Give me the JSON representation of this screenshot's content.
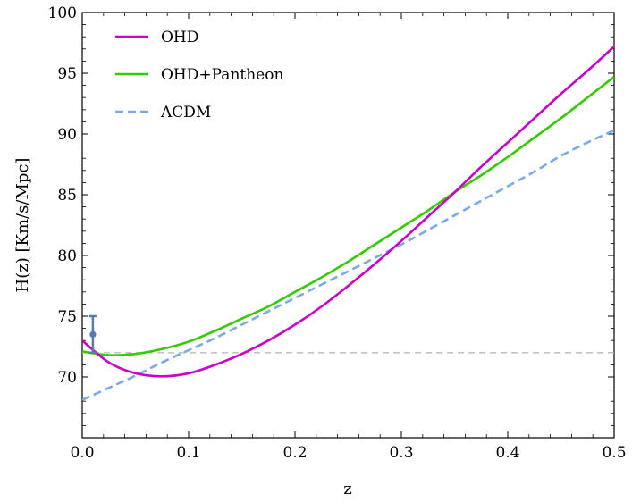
{
  "chart_data": {
    "type": "line",
    "xlabel": "z",
    "ylabel": "H(z) [Km/s/Mpc]",
    "xlim": [
      0,
      0.5
    ],
    "ylim": [
      65,
      100
    ],
    "x_ticks": [
      "0.0",
      "0.1",
      "0.2",
      "0.3",
      "0.4",
      "0.5"
    ],
    "y_ticks": [
      "70",
      "75",
      "80",
      "85",
      "90",
      "95",
      "100"
    ],
    "legend_position": "top-left",
    "x": [
      0.0,
      0.025,
      0.05,
      0.075,
      0.1,
      0.125,
      0.15,
      0.175,
      0.2,
      0.225,
      0.25,
      0.275,
      0.3,
      0.325,
      0.35,
      0.375,
      0.4,
      0.425,
      0.45,
      0.475,
      0.5
    ],
    "series": [
      {
        "name": "OHD",
        "color": "#cc00cc",
        "dash": "solid",
        "values": [
          73.0,
          71.2,
          70.3,
          70.05,
          70.3,
          71.0,
          71.9,
          73.0,
          74.3,
          75.8,
          77.5,
          79.3,
          81.2,
          83.2,
          85.2,
          87.3,
          89.3,
          91.3,
          93.3,
          95.2,
          97.2
        ]
      },
      {
        "name": "OHD+Pantheon",
        "color": "#33cc00",
        "dash": "solid",
        "values": [
          72.1,
          71.8,
          71.9,
          72.3,
          72.9,
          73.8,
          74.8,
          75.8,
          77.0,
          78.2,
          79.5,
          80.9,
          82.3,
          83.7,
          85.2,
          86.6,
          88.1,
          89.7,
          91.3,
          93.0,
          94.7
        ]
      },
      {
        "name": "ΛCDM",
        "color": "#7aaae8",
        "dash": "dashed",
        "values": [
          68.1,
          69.1,
          70.1,
          71.2,
          72.2,
          73.2,
          74.3,
          75.4,
          76.5,
          77.6,
          78.7,
          79.8,
          80.9,
          82.1,
          83.3,
          84.5,
          85.7,
          86.9,
          88.2,
          89.3,
          90.3
        ]
      }
    ],
    "reference_line": {
      "y": 72.0,
      "color": "#bbbbbb",
      "dash": "dashed"
    },
    "error_point": {
      "x": 0.01,
      "y": 73.5,
      "y_low": 72.0,
      "y_high": 75.0,
      "color": "#5a7aa8"
    }
  }
}
